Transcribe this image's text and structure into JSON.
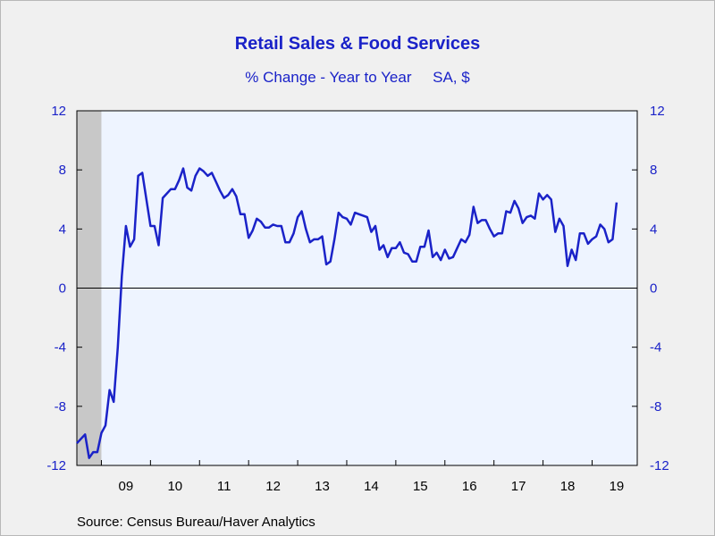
{
  "chart_data": {
    "type": "line",
    "title": "Retail Sales & Food Services",
    "subtitle_left": "% Change - Year to Year",
    "subtitle_right": "SA, $",
    "source": "Source:  Census Bureau/Haver Analytics",
    "ylim": [
      -12,
      12
    ],
    "yticks": [
      12,
      8,
      4,
      0,
      -4,
      -8,
      -12
    ],
    "xlim": [
      2008.5,
      2019.92
    ],
    "xticks": [
      {
        "label": "09",
        "x": 2009.5
      },
      {
        "label": "10",
        "x": 2010.5
      },
      {
        "label": "11",
        "x": 2011.5
      },
      {
        "label": "12",
        "x": 2012.5
      },
      {
        "label": "13",
        "x": 2013.5
      },
      {
        "label": "14",
        "x": 2014.5
      },
      {
        "label": "15",
        "x": 2015.5
      },
      {
        "label": "16",
        "x": 2016.5
      },
      {
        "label": "17",
        "x": 2017.5
      },
      {
        "label": "18",
        "x": 2018.5
      },
      {
        "label": "19",
        "x": 2019.5
      }
    ],
    "recession_shading": [
      2008.5,
      2009.0
    ],
    "colors": {
      "line": "#1a22c8",
      "plot_bg": "#eef4ff",
      "recession": "#c8c8c8",
      "zero_line": "#000000"
    },
    "series": [
      {
        "start": 2008.5,
        "step": 0.0833333,
        "values": [
          -10.5,
          -10.2,
          -9.9,
          -11.5,
          -11.1,
          -11.1,
          -9.8,
          -9.3,
          -6.9,
          -7.7,
          -4.0,
          0.8,
          4.2,
          2.8,
          3.3,
          7.6,
          7.8,
          6.0,
          4.2,
          4.2,
          2.9,
          6.1,
          6.4,
          6.7,
          6.7,
          7.3,
          8.1,
          6.8,
          6.6,
          7.6,
          8.1,
          7.9,
          7.6,
          7.8,
          7.2,
          6.6,
          6.1,
          6.3,
          6.7,
          6.2,
          5.0,
          5.0,
          3.4,
          3.9,
          4.7,
          4.5,
          4.1,
          4.1,
          4.3,
          4.2,
          4.2,
          3.1,
          3.1,
          3.7,
          4.8,
          5.2,
          4.0,
          3.1,
          3.3,
          3.3,
          3.5,
          1.6,
          1.8,
          3.3,
          5.1,
          4.8,
          4.7,
          4.3,
          5.1,
          5.0,
          4.9,
          4.8,
          3.8,
          4.2,
          2.6,
          2.9,
          2.1,
          2.7,
          2.7,
          3.1,
          2.4,
          2.3,
          1.8,
          1.8,
          2.8,
          2.8,
          3.9,
          2.1,
          2.4,
          1.9,
          2.6,
          2.0,
          2.1,
          2.7,
          3.3,
          3.1,
          3.6,
          5.5,
          4.4,
          4.6,
          4.6,
          4.0,
          3.5,
          3.7,
          3.7,
          5.2,
          5.1,
          5.9,
          5.4,
          4.4,
          4.8,
          4.9,
          4.7,
          6.4,
          6.0,
          6.3,
          6.0,
          3.8,
          4.7,
          4.2,
          1.5,
          2.6,
          1.9,
          3.7,
          3.7,
          3.0,
          3.3,
          3.5,
          4.3,
          4.0,
          3.1,
          3.3,
          5.8
        ]
      }
    ]
  }
}
